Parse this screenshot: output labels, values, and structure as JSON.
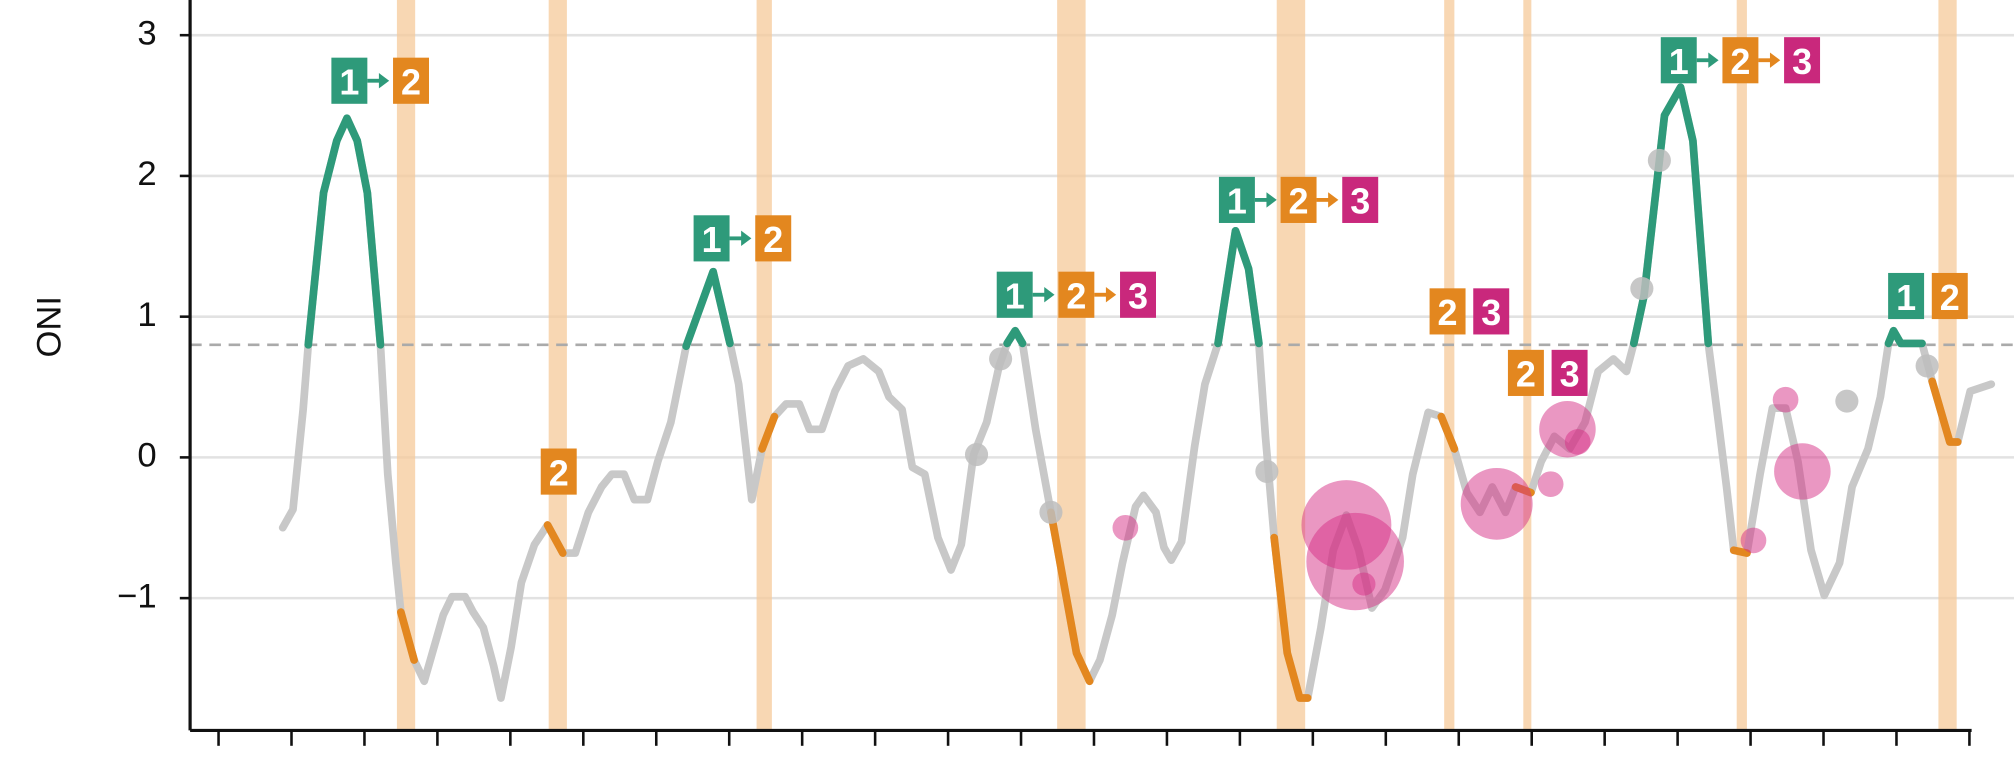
{
  "chart_data": {
    "type": "line",
    "y_label": "ONI",
    "xlim": [
      -0.39,
      24.03
    ],
    "ylim": [
      -1.94,
      3.25
    ],
    "xticks": [
      0,
      1,
      2,
      3,
      4,
      5,
      6,
      7,
      8,
      9,
      10,
      11,
      12,
      13,
      14,
      15,
      16,
      17,
      18,
      19,
      20,
      21,
      22,
      23,
      24
    ],
    "yticks": [
      3,
      2,
      1,
      0,
      {
        "value": -1,
        "label": "−1"
      }
    ],
    "grid": true,
    "threshold": 0.8,
    "band_color": "#f6c99a",
    "bands": [
      {
        "x": 2.57,
        "width": 0.25
      },
      {
        "x": 4.65,
        "width": 0.25
      },
      {
        "x": 7.48,
        "width": 0.21
      },
      {
        "x": 11.69,
        "width": 0.39
      },
      {
        "x": 14.7,
        "width": 0.39
      },
      {
        "x": 16.87,
        "width": 0.14
      },
      {
        "x": 17.94,
        "width": 0.11
      },
      {
        "x": 20.88,
        "width": 0.14
      },
      {
        "x": 23.7,
        "width": 0.25
      }
    ],
    "series": [
      {
        "color": "#c8c8c8",
        "x": [
          0.88,
          1.02,
          1.16,
          1.23,
          1.44,
          1.62,
          1.76,
          1.9,
          2.04,
          2.22,
          2.32,
          2.43,
          2.5,
          2.68,
          2.82,
          3.08,
          3.2,
          3.38,
          3.49,
          3.63,
          3.77,
          3.87,
          4.01,
          4.15,
          4.33,
          4.51,
          4.72,
          4.89,
          5.07,
          5.25,
          5.39,
          5.56,
          5.7,
          5.88,
          6.02,
          6.2,
          6.41,
          6.78,
          7.01,
          7.13,
          7.31,
          7.45,
          7.62,
          7.78,
          7.96,
          8.1,
          8.27,
          8.45,
          8.63,
          8.84,
          9.05,
          9.19,
          9.37,
          9.51,
          9.68,
          9.86,
          10.04,
          10.18,
          10.35,
          10.53,
          10.7,
          10.81,
          10.92,
          11.02,
          11.2,
          11.41,
          11.76,
          11.94,
          12.08,
          12.25,
          12.39,
          12.57,
          12.68,
          12.85,
          12.96,
          13.06,
          13.2,
          13.38,
          13.52,
          13.7,
          13.94,
          14.12,
          14.26,
          14.35,
          14.47,
          14.65,
          14.82,
          14.93,
          15.11,
          15.28,
          15.46,
          15.63,
          15.81,
          15.99,
          16.23,
          16.37,
          16.58,
          16.76,
          16.94,
          17.11,
          17.29,
          17.46,
          17.64,
          17.78,
          17.99,
          18.13,
          18.31,
          18.52,
          18.73,
          18.91,
          19.12,
          19.3,
          19.4,
          19.54,
          19.82,
          20.04,
          20.21,
          20.42,
          20.56,
          20.67,
          20.77,
          20.95,
          21.13,
          21.3,
          21.48,
          21.65,
          21.83,
          22.01,
          22.22,
          22.39,
          22.61,
          22.78,
          22.89,
          22.96,
          23.06,
          23.35,
          23.49,
          23.73,
          23.84,
          24.01,
          24.3
        ],
        "values": [
          -0.5,
          -0.37,
          0.34,
          0.8,
          1.88,
          2.25,
          2.41,
          2.25,
          1.88,
          0.8,
          -0.12,
          -0.75,
          -1.1,
          -1.44,
          -1.59,
          -1.12,
          -0.99,
          -0.99,
          -1.1,
          -1.21,
          -1.48,
          -1.71,
          -1.35,
          -0.89,
          -0.62,
          -0.48,
          -0.68,
          -0.68,
          -0.39,
          -0.21,
          -0.12,
          -0.12,
          -0.3,
          -0.3,
          -0.03,
          0.25,
          0.79,
          1.32,
          0.81,
          0.52,
          -0.3,
          0.06,
          0.29,
          0.38,
          0.38,
          0.2,
          0.2,
          0.47,
          0.65,
          0.7,
          0.61,
          0.43,
          0.34,
          -0.07,
          -0.12,
          -0.57,
          -0.8,
          -0.62,
          0.02,
          0.25,
          0.65,
          0.81,
          0.9,
          0.81,
          0.2,
          -0.39,
          -1.39,
          -1.59,
          -1.44,
          -1.12,
          -0.75,
          -0.35,
          -0.27,
          -0.39,
          -0.64,
          -0.73,
          -0.6,
          0.08,
          0.52,
          0.81,
          1.61,
          1.34,
          0.81,
          0.15,
          -0.57,
          -1.39,
          -1.71,
          -1.71,
          -1.21,
          -0.66,
          -0.41,
          -0.66,
          -1.07,
          -0.94,
          -0.57,
          -0.12,
          0.32,
          0.29,
          0.06,
          -0.25,
          -0.39,
          -0.21,
          -0.39,
          -0.21,
          -0.25,
          -0.03,
          0.15,
          0.06,
          0.25,
          0.61,
          0.7,
          0.61,
          0.81,
          1.15,
          2.43,
          2.63,
          2.25,
          0.81,
          0.25,
          -0.21,
          -0.66,
          -0.68,
          -0.12,
          0.35,
          0.35,
          -0.03,
          -0.66,
          -0.98,
          -0.75,
          -0.21,
          0.06,
          0.43,
          0.81,
          0.9,
          0.81,
          0.81,
          0.54,
          0.11,
          0.11,
          0.47,
          0.52
        ]
      },
      {
        "color": "#2e9a7a",
        "x": [
          1.23,
          1.44,
          1.62,
          1.76,
          1.9,
          2.04,
          2.22
        ],
        "values": [
          0.8,
          1.88,
          2.25,
          2.41,
          2.25,
          1.88,
          0.8
        ]
      },
      {
        "color": "#2e9a7a",
        "x": [
          6.41,
          6.78,
          7.01
        ],
        "values": [
          0.79,
          1.32,
          0.81
        ]
      },
      {
        "color": "#2e9a7a",
        "x": [
          10.81,
          10.92,
          11.02
        ],
        "values": [
          0.81,
          0.9,
          0.81
        ]
      },
      {
        "color": "#2e9a7a",
        "x": [
          13.7,
          13.94,
          14.12,
          14.26
        ],
        "values": [
          0.81,
          1.61,
          1.34,
          0.81
        ]
      },
      {
        "color": "#2e9a7a",
        "x": [
          19.4,
          19.54,
          19.82,
          20.04,
          20.21,
          20.42
        ],
        "values": [
          0.81,
          1.15,
          2.43,
          2.63,
          2.25,
          0.81
        ]
      },
      {
        "color": "#2e9a7a",
        "x": [
          22.89,
          22.96,
          23.06,
          23.35
        ],
        "values": [
          0.81,
          0.9,
          0.81,
          0.81
        ]
      },
      {
        "color": "#e3871f",
        "x": [
          2.5,
          2.68
        ],
        "values": [
          -1.1,
          -1.44
        ]
      },
      {
        "color": "#e3871f",
        "x": [
          4.51,
          4.72
        ],
        "values": [
          -0.48,
          -0.68
        ]
      },
      {
        "color": "#e3871f",
        "x": [
          7.45,
          7.62
        ],
        "values": [
          0.06,
          0.29
        ]
      },
      {
        "color": "#e3871f",
        "x": [
          11.41,
          11.76,
          11.94
        ],
        "values": [
          -0.39,
          -1.39,
          -1.59
        ]
      },
      {
        "color": "#e3871f",
        "x": [
          14.47,
          14.65,
          14.82,
          14.93
        ],
        "values": [
          -0.57,
          -1.39,
          -1.71,
          -1.71
        ]
      },
      {
        "color": "#e3871f",
        "x": [
          16.76,
          16.94
        ],
        "values": [
          0.29,
          0.06
        ]
      },
      {
        "color": "#e3871f",
        "x": [
          17.78,
          17.99
        ],
        "values": [
          -0.21,
          -0.25
        ]
      },
      {
        "color": "#e3871f",
        "x": [
          20.77,
          20.95
        ],
        "values": [
          -0.66,
          -0.68
        ]
      },
      {
        "color": "#e3871f",
        "x": [
          23.49,
          23.73,
          23.84
        ],
        "values": [
          0.54,
          0.11,
          0.11
        ]
      }
    ],
    "dots": {
      "color": "#bdbdbd",
      "x": [
        10.39,
        10.72,
        11.41,
        14.37,
        19.51,
        19.75,
        22.32,
        23.42
      ],
      "values": [
        0.02,
        0.7,
        -0.39,
        -0.1,
        1.2,
        2.11,
        0.4,
        0.65
      ]
    },
    "bubbles": {
      "color": "#d62f86",
      "x": [
        12.43,
        15.46,
        15.58,
        15.7,
        17.52,
        18.26,
        18.49,
        18.63,
        21.04,
        21.48,
        21.71
      ],
      "values": [
        -0.5,
        -0.48,
        -0.74,
        -0.9,
        -0.33,
        -0.19,
        0.2,
        0.11,
        -0.59,
        0.41,
        -0.1
      ],
      "sizes": [
        1.0,
        3.5,
        3.8,
        0.9,
        2.8,
        1.0,
        2.2,
        1.0,
        1.0,
        1.0,
        2.2
      ]
    },
    "badge_colors": {
      "1": "#2e9a7a",
      "2": "#e3871f",
      "3": "#c9287c"
    },
    "annotations": [
      {
        "items": [
          "1",
          "2"
        ],
        "arrow": true
      },
      {
        "items": [
          "2"
        ],
        "arrow": false
      },
      {
        "items": [
          "1",
          "2"
        ],
        "arrow": true
      },
      {
        "items": [
          "1",
          "2",
          "3"
        ],
        "arrow": true
      },
      {
        "items": [
          "1",
          "2",
          "3"
        ],
        "arrow": true
      },
      {
        "items": [
          "2",
          "3"
        ],
        "arrow": false
      },
      {
        "items": [
          "2",
          "3"
        ],
        "arrow": false
      },
      {
        "items": [
          "1",
          "2",
          "3"
        ],
        "arrow": true
      },
      {
        "items": [
          "1",
          "2"
        ],
        "arrow": false
      }
    ]
  }
}
